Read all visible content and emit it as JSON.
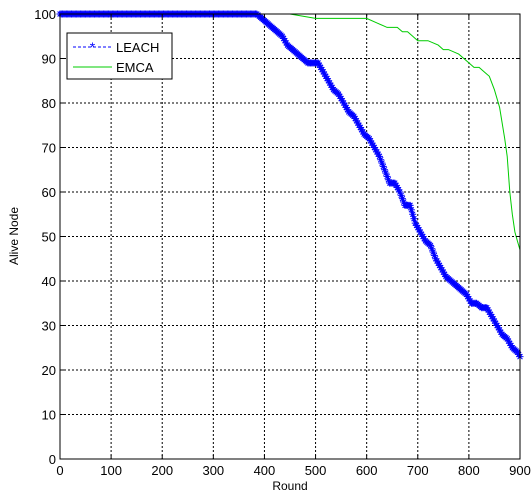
{
  "chart_data": {
    "type": "line",
    "xlabel": "Round",
    "ylabel": "Alive Node",
    "xlim": [
      0,
      900
    ],
    "ylim": [
      0,
      100
    ],
    "xticks": [
      "0",
      "100",
      "200",
      "300",
      "400",
      "500",
      "600",
      "700",
      "800",
      "900"
    ],
    "yticks": [
      "0",
      "10",
      "20",
      "30",
      "40",
      "50",
      "60",
      "70",
      "80",
      "90",
      "100"
    ],
    "grid": true,
    "legend": "top-left",
    "series": [
      {
        "name": "LEACH",
        "color": "#0000ff",
        "line_style": "dashed",
        "marker": "asterisk",
        "x": [
          0,
          100,
          200,
          300,
          385,
          395,
          405,
          415,
          425,
          435,
          445,
          455,
          465,
          475,
          485,
          495,
          505,
          515,
          525,
          535,
          545,
          555,
          565,
          575,
          585,
          595,
          605,
          615,
          625,
          635,
          645,
          655,
          665,
          675,
          685,
          695,
          705,
          715,
          725,
          735,
          745,
          755,
          765,
          775,
          785,
          795,
          805,
          815,
          825,
          835,
          845,
          855,
          865,
          875,
          885,
          895,
          900
        ],
        "y": [
          100,
          100,
          100,
          100,
          100,
          99,
          98,
          97,
          96,
          95,
          93,
          92,
          91,
          90,
          89,
          89,
          89,
          87,
          85,
          83,
          82,
          80,
          78,
          77,
          75,
          73,
          72,
          70,
          68,
          65,
          62,
          62,
          60,
          57,
          57,
          53,
          51,
          49,
          48,
          45,
          43,
          41,
          40,
          39,
          38,
          37,
          35,
          35,
          34,
          34,
          32,
          30,
          28,
          27,
          25,
          24,
          23
        ]
      },
      {
        "name": "EMCA",
        "color": "#00cc00",
        "line_style": "solid",
        "marker": "none",
        "x": [
          0,
          100,
          200,
          300,
          400,
          450,
          500,
          550,
          600,
          620,
          640,
          660,
          670,
          680,
          690,
          700,
          720,
          740,
          750,
          760,
          780,
          800,
          810,
          820,
          830,
          840,
          850,
          860,
          870,
          875,
          880,
          885,
          890,
          895,
          900
        ],
        "y": [
          100,
          100,
          100,
          100,
          100,
          100,
          99,
          99,
          99,
          98,
          97,
          97,
          96,
          96,
          95,
          94,
          94,
          93,
          92,
          92,
          91,
          89,
          88,
          88,
          87,
          86,
          83,
          79,
          72,
          68,
          60,
          55,
          51,
          49,
          47
        ]
      }
    ]
  }
}
